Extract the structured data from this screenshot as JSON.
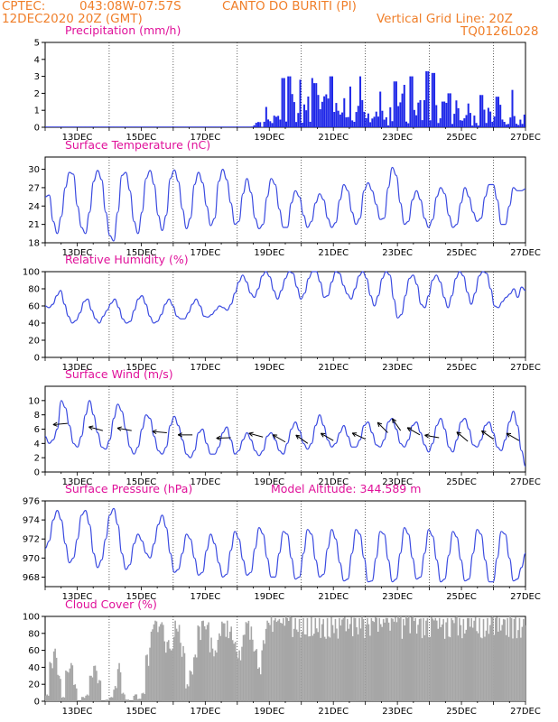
{
  "header": {
    "source": "CPTEC:",
    "coords": "043:08W-07:57S",
    "station": "CANTO DO BURITI (PI)",
    "date": "12DEC2020 20Z (GMT)",
    "grid_note": "Vertical Grid Line: 20Z",
    "run_code": "TQ0126L028"
  },
  "dates": [
    "13DEC",
    "15DEC",
    "17DEC",
    "19DEC",
    "21DEC",
    "23DEC",
    "25DEC",
    "27DEC"
  ],
  "colors": {
    "line": "#3a4ae0",
    "bar": "#1f28e8",
    "cloud": "#a6a6a6",
    "title": "#e0119a",
    "header": "#f07f2a"
  },
  "chart_data": [
    {
      "id": "precip",
      "type": "bar",
      "title": "Precipitation (mm/h)",
      "ylim": [
        0,
        5
      ],
      "yticks": [
        "0",
        "1",
        "2",
        "3",
        "4",
        "5"
      ],
      "x_unit": "days since 12DEC 20Z",
      "segments": [
        {
          "from": 0.0,
          "to": 6.4,
          "level": 0.05
        },
        {
          "from": 6.4,
          "to": 6.8,
          "level": 0.3
        },
        {
          "from": 6.8,
          "to": 7.2,
          "level": 1.2
        },
        {
          "from": 7.2,
          "to": 8.0,
          "level": 1.8
        },
        {
          "from": 8.0,
          "to": 9.0,
          "level": 1.7
        },
        {
          "from": 9.0,
          "to": 10.0,
          "level": 1.5
        },
        {
          "from": 10.0,
          "to": 11.0,
          "level": 1.3
        },
        {
          "from": 11.0,
          "to": 12.2,
          "level": 1.8
        },
        {
          "from": 12.2,
          "to": 13.0,
          "level": 1.4
        },
        {
          "from": 13.0,
          "to": 14.0,
          "level": 1.0
        },
        {
          "from": 14.0,
          "to": 15.0,
          "level": 1.2
        }
      ],
      "peaks": [
        [
          7.4,
          2.9
        ],
        [
          7.6,
          3.0
        ],
        [
          7.9,
          2.8
        ],
        [
          8.3,
          2.9
        ],
        [
          8.4,
          2.6
        ],
        [
          8.9,
          3.0
        ],
        [
          9.2,
          2.5
        ],
        [
          9.5,
          2.4
        ],
        [
          9.8,
          3.0
        ],
        [
          10.4,
          2.1
        ],
        [
          10.9,
          2.7
        ],
        [
          11.2,
          2.5
        ],
        [
          11.4,
          3.0
        ],
        [
          11.9,
          3.3
        ],
        [
          12.1,
          3.2
        ],
        [
          12.6,
          2.0
        ],
        [
          13.2,
          1.4
        ],
        [
          13.6,
          1.9
        ],
        [
          14.1,
          1.8
        ],
        [
          14.6,
          2.2
        ],
        [
          14.8,
          1.5
        ]
      ]
    },
    {
      "id": "temp",
      "type": "line",
      "title": "Surface Temperature (nC)",
      "ylim": [
        18,
        32
      ],
      "yticks": [
        "18",
        "21",
        "24",
        "27",
        "30"
      ],
      "y": [
        25.5,
        25.8,
        21.5,
        19.5,
        22.3,
        27.0,
        29.5,
        29.2,
        24.0,
        20.5,
        19.5,
        23.0,
        28.0,
        29.8,
        28.3,
        23.0,
        19.2,
        18.3,
        23.0,
        29.0,
        29.5,
        26.5,
        21.5,
        19.5,
        23.0,
        28.5,
        29.8,
        27.5,
        22.5,
        20.0,
        22.5,
        28.5,
        29.9,
        28.0,
        23.5,
        20.3,
        22.0,
        27.5,
        29.5,
        27.8,
        24.0,
        20.8,
        22.0,
        28.0,
        30.0,
        28.3,
        24.5,
        21.0,
        21.5,
        26.0,
        28.5,
        26.2,
        22.0,
        20.3,
        21.0,
        25.5,
        28.5,
        27.5,
        23.5,
        20.5,
        20.5,
        24.5,
        26.5,
        25.5,
        22.5,
        20.5,
        21.5,
        24.5,
        26.0,
        25.0,
        22.0,
        20.5,
        21.3,
        25.0,
        27.5,
        26.5,
        23.0,
        21.0,
        22.0,
        26.5,
        27.8,
        26.5,
        24.3,
        21.8,
        22.0,
        27.0,
        30.3,
        29.0,
        24.5,
        21.0,
        21.5,
        25.0,
        26.5,
        25.0,
        22.0,
        20.5,
        21.8,
        25.5,
        27.0,
        26.0,
        22.5,
        20.5,
        21.0,
        24.5,
        27.0,
        25.5,
        23.0,
        21.5,
        22.0,
        25.5,
        27.5,
        27.5,
        25.0,
        21.0,
        21.0,
        24.0,
        27.0,
        26.5,
        26.5,
        26.8
      ]
    },
    {
      "id": "rh",
      "type": "line",
      "title": "Relative Humidity (%)",
      "ylim": [
        0,
        100
      ],
      "yticks": [
        "0",
        "20",
        "40",
        "60",
        "80",
        "100"
      ],
      "y": [
        60,
        58,
        62,
        72,
        78,
        62,
        48,
        40,
        43,
        52,
        65,
        68,
        55,
        45,
        40,
        48,
        55,
        63,
        68,
        58,
        45,
        40,
        42,
        55,
        68,
        72,
        62,
        48,
        40,
        42,
        50,
        62,
        68,
        60,
        48,
        45,
        45,
        52,
        62,
        68,
        60,
        48,
        47,
        50,
        55,
        60,
        58,
        55,
        62,
        75,
        88,
        96,
        88,
        75,
        70,
        80,
        95,
        100,
        94,
        78,
        68,
        78,
        92,
        100,
        98,
        82,
        68,
        75,
        92,
        100,
        100,
        88,
        70,
        72,
        88,
        100,
        98,
        84,
        74,
        68,
        80,
        95,
        100,
        92,
        72,
        60,
        72,
        92,
        100,
        96,
        68,
        46,
        50,
        72,
        92,
        96,
        85,
        62,
        58,
        72,
        90,
        96,
        88,
        70,
        58,
        72,
        92,
        100,
        95,
        76,
        62,
        75,
        95,
        100,
        98,
        80,
        60,
        58,
        65,
        70,
        74,
        80,
        70,
        82,
        78
      ]
    },
    {
      "id": "wind",
      "type": "line",
      "title": "Surface Wind (m/s)",
      "ylim": [
        0,
        12
      ],
      "yticks": [
        "0",
        "2",
        "4",
        "6",
        "8",
        "10"
      ],
      "y": [
        5.0,
        4.0,
        4.5,
        6.0,
        10.0,
        9.0,
        6.5,
        4.0,
        3.5,
        5.0,
        8.0,
        10.0,
        8.0,
        5.5,
        3.5,
        3.2,
        4.5,
        7.5,
        9.5,
        8.5,
        6.0,
        3.5,
        2.5,
        3.5,
        6.0,
        8.0,
        7.5,
        5.0,
        3.0,
        2.5,
        3.5,
        6.5,
        7.8,
        6.5,
        4.5,
        2.5,
        2.0,
        3.0,
        5.5,
        6.0,
        4.0,
        2.5,
        2.5,
        3.5,
        5.5,
        6.3,
        4.5,
        2.5,
        3.0,
        4.5,
        5.5,
        4.5,
        3.0,
        2.3,
        3.0,
        5.0,
        5.5,
        4.5,
        3.0,
        2.5,
        4.0,
        6.0,
        7.0,
        5.8,
        4.0,
        3.2,
        4.0,
        6.5,
        8.0,
        6.5,
        4.5,
        3.5,
        4.0,
        5.5,
        6.5,
        5.0,
        3.5,
        3.5,
        4.5,
        6.5,
        7.0,
        5.5,
        3.8,
        3.5,
        4.5,
        7.0,
        7.5,
        6.0,
        4.0,
        3.5,
        4.5,
        6.5,
        7.0,
        5.5,
        3.8,
        2.8,
        4.0,
        6.5,
        7.5,
        6.0,
        3.5,
        2.8,
        4.5,
        7.0,
        7.5,
        6.0,
        3.8,
        3.5,
        4.5,
        6.5,
        7.0,
        5.5,
        3.5,
        3.0,
        4.5,
        7.0,
        8.5,
        6.5,
        3.0,
        0.8
      ]
    },
    {
      "id": "press",
      "type": "line",
      "title": "Surface Pressure (hPa)",
      "annotation": "Model Altitude: 344.589  m",
      "ylim": [
        967,
        976
      ],
      "yticks": [
        "968",
        "970",
        "972",
        "974",
        "976"
      ],
      "y": [
        971.0,
        971.8,
        974.0,
        975.0,
        974.0,
        971.5,
        969.5,
        970.0,
        972.0,
        974.5,
        975.0,
        973.5,
        970.5,
        969.0,
        969.8,
        972.0,
        974.5,
        975.2,
        973.5,
        970.5,
        968.8,
        969.3,
        971.5,
        972.5,
        971.8,
        970.5,
        970.0,
        971.5,
        973.5,
        974.5,
        973.2,
        970.5,
        968.5,
        968.8,
        970.5,
        972.5,
        972.0,
        970.0,
        968.2,
        968.5,
        970.8,
        972.5,
        971.5,
        969.5,
        968.0,
        968.3,
        970.8,
        972.8,
        972.0,
        969.8,
        968.2,
        968.5,
        971.0,
        973.2,
        972.5,
        970.0,
        968.0,
        968.0,
        970.5,
        972.8,
        972.5,
        970.0,
        967.8,
        968.0,
        970.5,
        973.0,
        972.5,
        969.8,
        968.0,
        968.3,
        971.0,
        973.0,
        972.0,
        969.5,
        967.6,
        967.8,
        970.5,
        973.0,
        972.5,
        970.0,
        967.5,
        967.6,
        970.0,
        972.8,
        972.5,
        969.8,
        967.5,
        967.8,
        970.5,
        973.2,
        972.5,
        970.0,
        967.8,
        968.0,
        970.5,
        973.0,
        972.3,
        969.8,
        967.5,
        967.8,
        970.3,
        972.8,
        972.2,
        969.8,
        967.6,
        967.8,
        970.5,
        973.0,
        972.5,
        969.8,
        967.5,
        967.5,
        970.0,
        972.8,
        972.5,
        970.0,
        967.6,
        967.8,
        969.0,
        970.5
      ]
    },
    {
      "id": "cloud",
      "type": "bar",
      "title": "Cloud Cover (%)",
      "ylim": [
        0,
        100
      ],
      "yticks": [
        "0",
        "20",
        "40",
        "60",
        "80",
        "100"
      ],
      "y": [
        8,
        45,
        62,
        30,
        5,
        35,
        45,
        20,
        0,
        5,
        8,
        30,
        42,
        25,
        0,
        2,
        5,
        18,
        45,
        10,
        2,
        0,
        8,
        3,
        10,
        55,
        82,
        95,
        88,
        90,
        70,
        60,
        95,
        90,
        65,
        20,
        35,
        55,
        88,
        95,
        90,
        75,
        60,
        80,
        92,
        95,
        88,
        70,
        60,
        78,
        92,
        88,
        60,
        40,
        72,
        95,
        100,
        98,
        97,
        98,
        98,
        99,
        98,
        97,
        98,
        98,
        99,
        98,
        98,
        97,
        98,
        99,
        97,
        98,
        98,
        97,
        99,
        98,
        98,
        97,
        98,
        98,
        99,
        98,
        97,
        98,
        98,
        99,
        98,
        97,
        98,
        99,
        98,
        97,
        98,
        98,
        99,
        98,
        98,
        97,
        98,
        98,
        99,
        98,
        97,
        98,
        98,
        99,
        98,
        97,
        98,
        99,
        98,
        98,
        97,
        98,
        98,
        99,
        98,
        97
      ]
    }
  ]
}
